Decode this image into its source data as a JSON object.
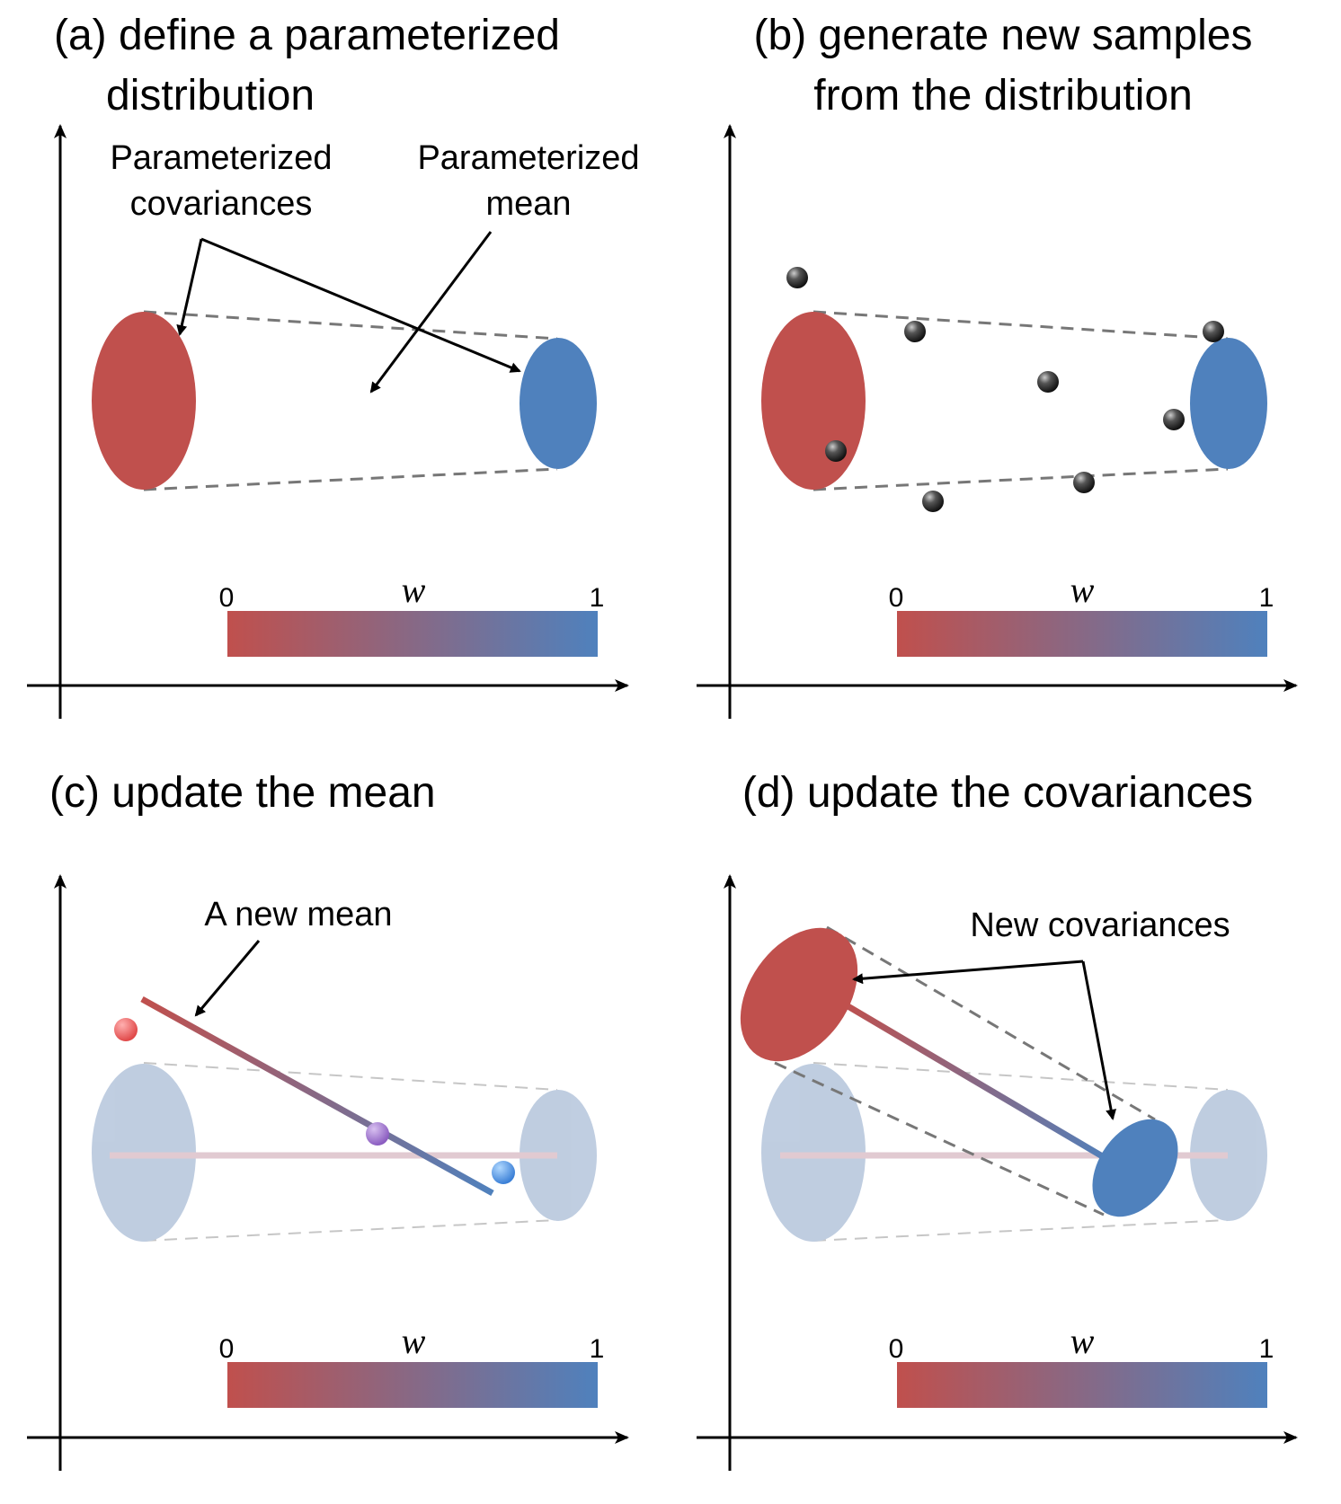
{
  "panels": {
    "a": {
      "title_line1": "(a) define a parameterized",
      "title_line2": "distribution",
      "label_cov_1": "Parameterized",
      "label_cov_2": "covariances",
      "label_mean_1": "Parameterized",
      "label_mean_2": "mean"
    },
    "b": {
      "title_line1": "(b) generate new samples",
      "title_line2": "from the distribution"
    },
    "c": {
      "title": "(c) update the mean",
      "label_new_mean": "A new mean"
    },
    "d": {
      "title": "(d) update the covariances",
      "label_new_cov": "New covariances"
    }
  },
  "colorbar": {
    "min_label": "0",
    "max_label": "1",
    "variable": "w"
  },
  "colors": {
    "red": "#c0504d",
    "blue": "#4f81bd",
    "sample": "#333333",
    "faded": "#b8c7db"
  }
}
